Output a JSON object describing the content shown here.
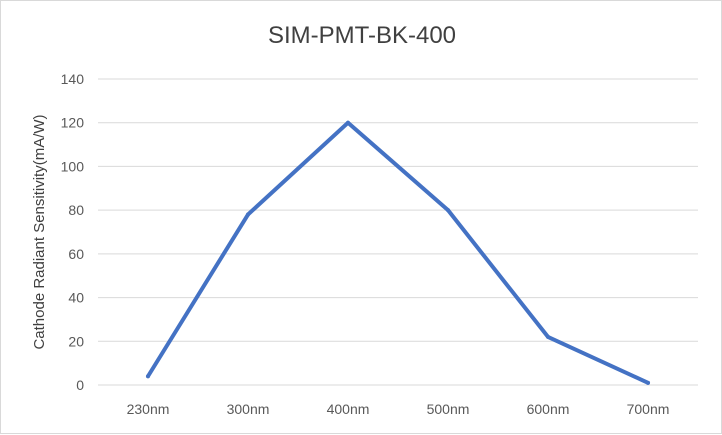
{
  "chart_data": {
    "type": "line",
    "title": "SIM-PMT-BK-400",
    "xlabel": "",
    "ylabel": "Cathode Radiant Sensitivity(mA/W)",
    "categories": [
      "230nm",
      "300nm",
      "400nm",
      "500nm",
      "600nm",
      "700nm"
    ],
    "series": [
      {
        "name": "",
        "values": [
          4,
          78,
          120,
          80,
          22,
          1
        ]
      }
    ],
    "ylim": [
      0,
      140
    ],
    "yticks": [
      0,
      20,
      40,
      60,
      80,
      100,
      120,
      140
    ],
    "grid": true,
    "legend": "none",
    "colors": {
      "line": "#4472c4",
      "grid": "#d9d9d9",
      "text": "#595959"
    }
  }
}
